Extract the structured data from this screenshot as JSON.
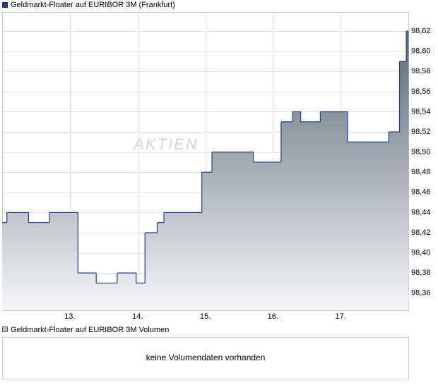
{
  "chart_data": [
    {
      "type": "line",
      "watermark": "AKTIEN",
      "x": [
        12.0,
        12.07,
        12.39,
        12.7,
        13.06,
        13.12,
        13.39,
        13.7,
        13.98,
        14.11,
        14.29,
        14.39,
        14.95,
        15.1,
        15.71,
        16.12,
        16.29,
        16.41,
        16.7,
        17.1,
        17.71,
        17.87,
        17.97
      ],
      "series": [
        {
          "name": "Geldmarkt-Floater auf EURIBOR 3M (Frankfurt)",
          "color": "#1c3e94",
          "values": [
            98.43,
            98.44,
            98.43,
            98.44,
            98.44,
            98.38,
            98.37,
            98.38,
            98.37,
            98.42,
            98.43,
            98.44,
            98.48,
            98.5,
            98.49,
            98.53,
            98.54,
            98.53,
            98.54,
            98.51,
            98.52,
            98.59,
            98.62
          ]
        }
      ],
      "fill_gradient": [
        "#5a6a76",
        "#f5f6f8"
      ],
      "xlim": [
        12,
        18
      ],
      "xticks": [
        {
          "value": 13,
          "label": "13."
        },
        {
          "value": 14,
          "label": "14."
        },
        {
          "value": 15,
          "label": "15."
        },
        {
          "value": 16,
          "label": "16."
        },
        {
          "value": 17,
          "label": "17."
        }
      ],
      "ylim": [
        98.343,
        98.639
      ],
      "yticks": [
        {
          "value": 98.36,
          "label": "98,36"
        },
        {
          "value": 98.38,
          "label": "98,38"
        },
        {
          "value": 98.4,
          "label": "98,40"
        },
        {
          "value": 98.42,
          "label": "98,42"
        },
        {
          "value": 98.44,
          "label": "98,44"
        },
        {
          "value": 98.46,
          "label": "98,46"
        },
        {
          "value": 98.48,
          "label": "98,48"
        },
        {
          "value": 98.5,
          "label": "98,50"
        },
        {
          "value": 98.52,
          "label": "98,52"
        },
        {
          "value": 98.54,
          "label": "98,54"
        },
        {
          "value": 98.56,
          "label": "98,56"
        },
        {
          "value": 98.58,
          "label": "98,58"
        },
        {
          "value": 98.6,
          "label": "98,60"
        },
        {
          "value": 98.62,
          "label": "98,62"
        }
      ],
      "grid": true
    },
    {
      "type": "bar",
      "series": [
        {
          "name": "Geldmarkt-Floater auf EURIBOR 3M Volumen",
          "color": "#c0c0c0",
          "values": []
        }
      ],
      "annotation": "keine Volumendaten vorhanden"
    }
  ]
}
